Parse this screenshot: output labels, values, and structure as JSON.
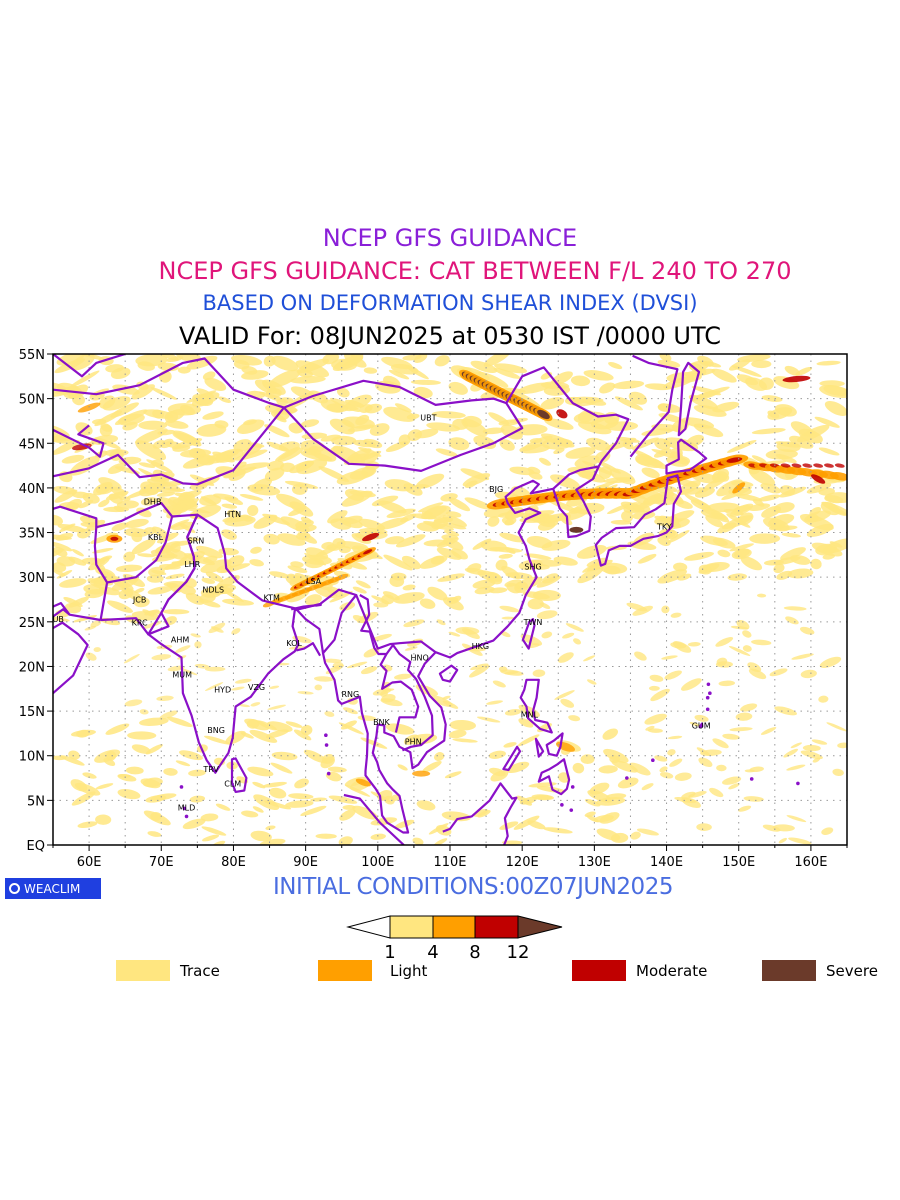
{
  "titles": {
    "line1": "NCEP GFS GUIDANCE",
    "line2": "NCEP GFS GUIDANCE: CAT BETWEEN F/L 240 TO 270",
    "line3": "BASED ON DEFORMATION SHEAR INDEX (DVSI)",
    "line4": "VALID For: 08JUN2025 at 0530 IST /0000 UTC"
  },
  "map": {
    "lat_labels": [
      "55N",
      "50N",
      "45N",
      "40N",
      "35N",
      "30N",
      "25N",
      "20N",
      "15N",
      "10N",
      "5N",
      "EQ"
    ],
    "lon_labels": [
      "60E",
      "70E",
      "80E",
      "90E",
      "100E",
      "110E",
      "120E",
      "130E",
      "140E",
      "150E",
      "160E"
    ],
    "cities": [
      {
        "name": "UBT",
        "lon": 107,
        "lat": 47.9
      },
      {
        "name": "BJG",
        "lon": 116.4,
        "lat": 39.9
      },
      {
        "name": "TKY",
        "lon": 139.7,
        "lat": 35.7
      },
      {
        "name": "DHB",
        "lon": 68.8,
        "lat": 38.5
      },
      {
        "name": "HTN",
        "lon": 79.9,
        "lat": 37.1
      },
      {
        "name": "KBL",
        "lon": 69.2,
        "lat": 34.5
      },
      {
        "name": "SRN",
        "lon": 74.8,
        "lat": 34.1
      },
      {
        "name": "LHR",
        "lon": 74.3,
        "lat": 31.5
      },
      {
        "name": "LSA",
        "lon": 91.1,
        "lat": 29.6
      },
      {
        "name": "SHG",
        "lon": 121.5,
        "lat": 31.2
      },
      {
        "name": "JCB",
        "lon": 67.0,
        "lat": 27.5
      },
      {
        "name": "NDLS",
        "lon": 77.2,
        "lat": 28.6
      },
      {
        "name": "KTM",
        "lon": 85.3,
        "lat": 27.7
      },
      {
        "name": "DUB",
        "lon": 55.3,
        "lat": 25.3
      },
      {
        "name": "KRC",
        "lon": 67.0,
        "lat": 24.9
      },
      {
        "name": "TWN",
        "lon": 121.5,
        "lat": 25.0
      },
      {
        "name": "AHM",
        "lon": 72.6,
        "lat": 23.0
      },
      {
        "name": "KOL",
        "lon": 88.4,
        "lat": 22.6
      },
      {
        "name": "HKG",
        "lon": 114.2,
        "lat": 22.3
      },
      {
        "name": "HNO",
        "lon": 105.8,
        "lat": 21.0
      },
      {
        "name": "MUM",
        "lon": 72.9,
        "lat": 19.1
      },
      {
        "name": "HYD",
        "lon": 78.5,
        "lat": 17.4
      },
      {
        "name": "VZG",
        "lon": 83.2,
        "lat": 17.7
      },
      {
        "name": "RNG",
        "lon": 96.2,
        "lat": 16.9
      },
      {
        "name": "MNL",
        "lon": 121.0,
        "lat": 14.6
      },
      {
        "name": "GUM",
        "lon": 144.8,
        "lat": 13.4
      },
      {
        "name": "BNK",
        "lon": 100.5,
        "lat": 13.8
      },
      {
        "name": "PHN",
        "lon": 104.9,
        "lat": 11.6
      },
      {
        "name": "BNG",
        "lon": 77.6,
        "lat": 12.9
      },
      {
        "name": "TRV",
        "lon": 76.9,
        "lat": 8.5
      },
      {
        "name": "CLM",
        "lon": 79.9,
        "lat": 6.9
      },
      {
        "name": "MLD",
        "lon": 73.5,
        "lat": 4.2
      }
    ]
  },
  "logo": {
    "text": "WEACLIM"
  },
  "initial_conditions": "INITIAL CONDITIONS:00Z07JUN2025",
  "colorbar": {
    "ticks": [
      "1",
      "4",
      "8",
      "12"
    ],
    "colors": [
      "#ffffff",
      "#ffe680",
      "#ff9f00",
      "#c00000",
      "#6b3a2a"
    ]
  },
  "legend": [
    {
      "label": "Trace",
      "color": "#ffe680"
    },
    {
      "label": "Light",
      "color": "#ff9f00"
    },
    {
      "label": "Moderate",
      "color": "#c00000"
    },
    {
      "label": "Severe",
      "color": "#6b3a2a"
    }
  ],
  "colors": {
    "border": "#8a10c8",
    "grid": "#9a9a9a"
  }
}
